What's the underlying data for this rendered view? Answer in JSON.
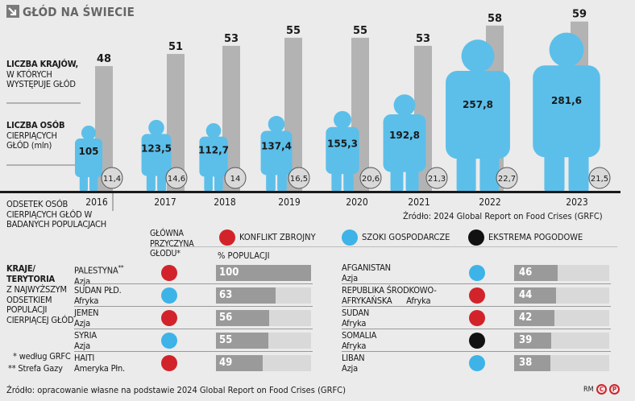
{
  "header": {
    "title": "GŁÓD NA ŚWIECIE"
  },
  "labels": {
    "countries_title": "LICZBA KRAJÓW,",
    "countries_sub": "W KTÓRYCH WYSTĘPUJE GŁÓD",
    "people_title": "LICZBA OSÓB",
    "people_sub": "CIERPIĄCYCH GŁÓD (mln)",
    "share_label": "ODSETEK OSÓB CIERPIĄCYCH GŁÓD W BADANYCH POPULACJACH"
  },
  "chart_data": {
    "type": "bar",
    "title": "GŁÓD NA ŚWIECIE",
    "categories": [
      "2016",
      "2017",
      "2018",
      "2019",
      "2020",
      "2021",
      "2022",
      "2023"
    ],
    "series": [
      {
        "name": "Liczba krajów, w których występuje głód",
        "values": [
          48,
          51,
          53,
          55,
          55,
          53,
          58,
          59
        ]
      },
      {
        "name": "Liczba osób cierpiących głód (mln)",
        "values": [
          "105",
          "123,5",
          "112,7",
          "137,4",
          "155,3",
          "192,8",
          "257,8",
          "281,6"
        ]
      },
      {
        "name": "Odsetek osób cierpiących głód w badanych populacjach",
        "values": [
          "11,4",
          "14,6",
          "14",
          "16,5",
          "20,6",
          "21,3",
          "22,7",
          "21,5"
        ]
      }
    ]
  },
  "source_top": "Źródło: 2024 Global Report on Food Crises (GRFC)",
  "legend": {
    "title": "GŁÓWNA PRZYCZYNA GŁODU*",
    "items": [
      {
        "label": "KONFLIKT ZBROJNY",
        "color": "#d2232a"
      },
      {
        "label": "SZOKI GOSPODARCZE",
        "color": "#3db3e8"
      },
      {
        "label": "EKSTREMA POGODOWE",
        "color": "#111111"
      }
    ],
    "pct_header": "% POPULACJI"
  },
  "table_left": {
    "title": "KRAJE/ TERYTORIA",
    "subtitle": "Z NAJWYŻSZYM ODSETKIEM POPULACJI CIERPIĄCEJ GŁÓD",
    "notes": [
      "* według GRFC",
      "** Strefa Gazy"
    ]
  },
  "rows_left": [
    {
      "name": "PALESTYNA",
      "sup": "**",
      "region": "Azja",
      "cause": "#d2232a",
      "value": 100,
      "label": "100"
    },
    {
      "name": "SUDAN PŁD.",
      "sup": "",
      "region": "Afryka",
      "cause": "#3db3e8",
      "value": 63,
      "label": "63"
    },
    {
      "name": "JEMEN",
      "sup": "",
      "region": "Azja",
      "cause": "#d2232a",
      "value": 56,
      "label": "56"
    },
    {
      "name": "SYRIA",
      "sup": "",
      "region": "Azja",
      "cause": "#3db3e8",
      "value": 55,
      "label": "55"
    },
    {
      "name": "HAITI",
      "sup": "",
      "region": "Ameryka Płn.",
      "cause": "#d2232a",
      "value": 49,
      "label": "49"
    }
  ],
  "rows_right": [
    {
      "name": "AFGANISTAN",
      "region": "Azja",
      "cause": "#3db3e8",
      "value": 46,
      "label": "46"
    },
    {
      "name": "REPUBLIKA ŚRODKOWO-",
      "name2": "AFRYKAŃSKA",
      "region": "Afryka",
      "cause": "#d2232a",
      "value": 44,
      "label": "44"
    },
    {
      "name": "SUDAN",
      "region": "Afryka",
      "cause": "#d2232a",
      "value": 42,
      "label": "42"
    },
    {
      "name": "SOMALIA",
      "region": "Afryka",
      "cause": "#111111",
      "value": 39,
      "label": "39"
    },
    {
      "name": "LIBAN",
      "region": "Azja",
      "cause": "#3db3e8",
      "value": 38,
      "label": "38"
    }
  ],
  "footer": {
    "source": "Źródło: opracowanie własne na podstawie 2024 Global Report on Food Crises (GRFC)",
    "credit": "RM",
    "logo1": "C",
    "logo2": "P"
  },
  "colors": {
    "bar": "#b3b3b3",
    "person": "#5bbfea",
    "circle": "#d9d9d9"
  }
}
